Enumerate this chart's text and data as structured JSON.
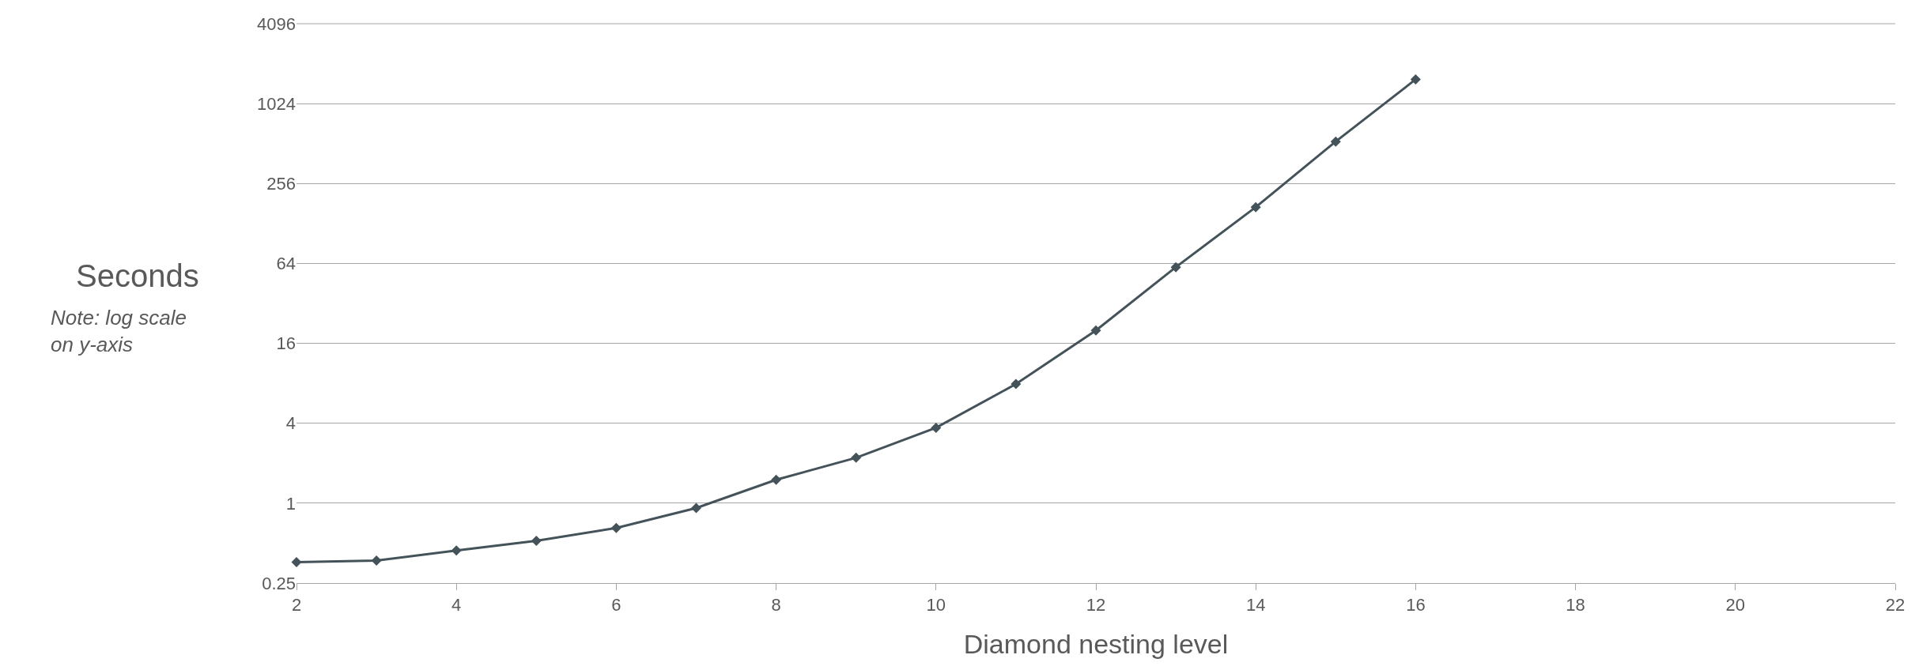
{
  "chart_data": {
    "type": "line",
    "xlabel": "Diamond nesting level",
    "ylabel": "Seconds",
    "annotations": [
      "Note: log scale on y-axis"
    ],
    "x": [
      2,
      3,
      4,
      5,
      6,
      7,
      8,
      9,
      10,
      11,
      12,
      13,
      14,
      15,
      16
    ],
    "series": [
      {
        "color": "#44525a",
        "values": [
          0.36,
          0.37,
          0.44,
          0.52,
          0.65,
          0.92,
          1.5,
          2.2,
          3.7,
          7.9,
          20,
          60,
          170,
          530,
          1560
        ]
      }
    ],
    "xlim": [
      2,
      22
    ],
    "xticks": [
      2,
      4,
      6,
      8,
      10,
      12,
      14,
      16,
      18,
      20,
      22
    ],
    "ylim": [
      0.25,
      4096
    ],
    "yticks": [
      0.25,
      1,
      4,
      16,
      64,
      256,
      1024,
      4096
    ],
    "log": "y",
    "grid": "y",
    "marker": "diamond",
    "line_style": "solid"
  }
}
